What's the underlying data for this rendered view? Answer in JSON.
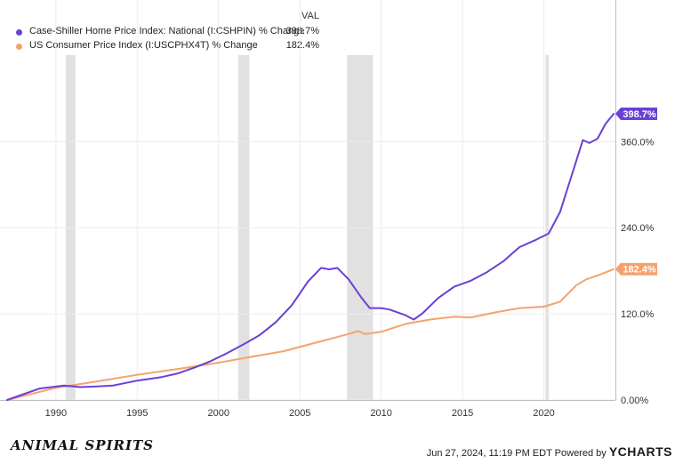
{
  "legend": {
    "header": "VAL",
    "items": [
      {
        "name": "Case-Shiller Home Price Index: National (I:CSHPIN) % Change",
        "value": "398.7%",
        "color": "#6a3fd6"
      },
      {
        "name": "US Consumer Price Index (I:USCPHX4T) % Change",
        "value": "182.4%",
        "color": "#f4a26d"
      }
    ]
  },
  "footer": {
    "brand": "ANIMAL SPIRITS",
    "timestamp": "Jun 27, 2024, 11:19 PM EDT Powered by",
    "provider": "YCHARTS"
  },
  "chart_data": {
    "type": "line",
    "xlim": [
      1987.0,
      2024.4
    ],
    "ylim": [
      0,
      398.7
    ],
    "x_ticks": [
      1990,
      1995,
      2000,
      2005,
      2010,
      2015,
      2020
    ],
    "y_ticks": [
      {
        "value": 0,
        "label": "0.00%"
      },
      {
        "value": 120,
        "label": "120.0%"
      },
      {
        "value": 240,
        "label": "240.0%"
      },
      {
        "value": 360,
        "label": "360.0%"
      }
    ],
    "recessions": [
      [
        1990.6,
        1991.2
      ],
      [
        2001.2,
        2001.9
      ],
      [
        2007.9,
        2009.5
      ],
      [
        2020.1,
        2020.3
      ]
    ],
    "series": [
      {
        "name": "Case-Shiller Home Price Index: National (I:CSHPIN) % Change",
        "color": "#6a3fd6",
        "end_label": "398.7%",
        "points": [
          [
            1987.0,
            0
          ],
          [
            1988.0,
            8
          ],
          [
            1989.0,
            16
          ],
          [
            1990.5,
            20
          ],
          [
            1991.5,
            18
          ],
          [
            1992.5,
            19
          ],
          [
            1993.5,
            20
          ],
          [
            1995.0,
            27
          ],
          [
            1996.5,
            32
          ],
          [
            1997.5,
            37
          ],
          [
            1998.5,
            45
          ],
          [
            1999.5,
            54
          ],
          [
            2000.5,
            65
          ],
          [
            2001.5,
            77
          ],
          [
            2002.5,
            90
          ],
          [
            2003.5,
            108
          ],
          [
            2004.5,
            132
          ],
          [
            2005.5,
            165
          ],
          [
            2006.3,
            184
          ],
          [
            2006.8,
            182
          ],
          [
            2007.3,
            184
          ],
          [
            2008.0,
            168
          ],
          [
            2008.8,
            142
          ],
          [
            2009.3,
            128
          ],
          [
            2010.0,
            128
          ],
          [
            2010.5,
            126
          ],
          [
            2011.5,
            118
          ],
          [
            2012.0,
            112
          ],
          [
            2012.5,
            120
          ],
          [
            2013.5,
            142
          ],
          [
            2014.5,
            158
          ],
          [
            2015.5,
            166
          ],
          [
            2016.5,
            178
          ],
          [
            2017.5,
            193
          ],
          [
            2018.5,
            213
          ],
          [
            2019.5,
            223
          ],
          [
            2020.3,
            232
          ],
          [
            2021.0,
            262
          ],
          [
            2021.7,
            312
          ],
          [
            2022.4,
            362
          ],
          [
            2022.8,
            358
          ],
          [
            2023.3,
            364
          ],
          [
            2023.8,
            385
          ],
          [
            2024.3,
            398.7
          ]
        ]
      },
      {
        "name": "US Consumer Price Index (I:USCPHX4T) % Change",
        "color": "#f4a26d",
        "end_label": "182.4%",
        "points": [
          [
            1987.0,
            0
          ],
          [
            1990.0,
            17
          ],
          [
            1992.0,
            24
          ],
          [
            1995.0,
            35
          ],
          [
            1998.0,
            45
          ],
          [
            2000.0,
            52
          ],
          [
            2002.0,
            60
          ],
          [
            2004.0,
            68
          ],
          [
            2006.0,
            80
          ],
          [
            2008.0,
            92
          ],
          [
            2008.6,
            96
          ],
          [
            2009.0,
            92
          ],
          [
            2010.0,
            95
          ],
          [
            2011.5,
            106
          ],
          [
            2013.0,
            112
          ],
          [
            2014.5,
            116
          ],
          [
            2015.5,
            115
          ],
          [
            2017.0,
            122
          ],
          [
            2018.5,
            128
          ],
          [
            2020.0,
            130
          ],
          [
            2021.0,
            137
          ],
          [
            2022.0,
            160
          ],
          [
            2022.6,
            168
          ],
          [
            2023.5,
            175
          ],
          [
            2024.3,
            182.4
          ]
        ]
      }
    ]
  }
}
